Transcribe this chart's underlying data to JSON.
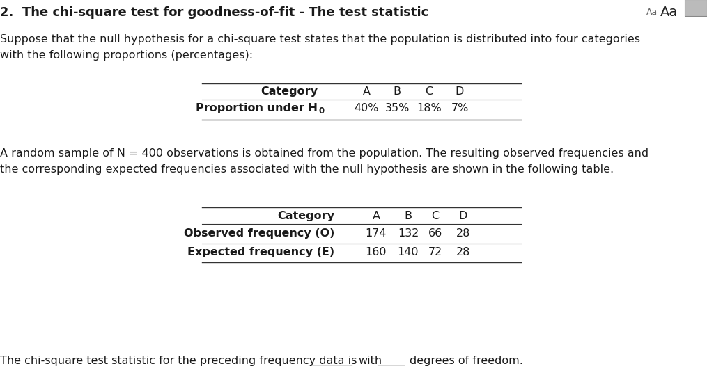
{
  "title": "2.  The chi-square test for goodness-of-fit - The test statistic",
  "bg_color": "#ffffff",
  "text_color": "#1a1a1a",
  "para1_line1": "Suppose that the null hypothesis for a chi-square test states that the population is distributed into four categories",
  "para1_line2": "with the following proportions (percentages):",
  "table1_header": [
    "Category",
    "A",
    "B",
    "C",
    "D"
  ],
  "table1_row1_label": "Proportion under H",
  "table1_row1_sub": "0",
  "table1_row1_values": [
    "40%",
    "35%",
    "18%",
    "7%"
  ],
  "para2_line1": "A random sample of N = 400 observations is obtained from the population. The resulting observed frequencies and",
  "para2_line2": "the corresponding expected frequencies associated with the null hypothesis are shown in the following table.",
  "table2_header": [
    "Category",
    "A",
    "B",
    "C",
    "D"
  ],
  "table2_row1_label": "Observed frequency (O)",
  "table2_row1_values": [
    "174",
    "132",
    "66",
    "28"
  ],
  "table2_row2_label": "Expected frequency (E)",
  "table2_row2_values": [
    "160",
    "140",
    "72",
    "28"
  ],
  "footer_part1": "The chi-square test statistic for the preceding frequency data is",
  "footer_part2": "with",
  "footer_part3": "degrees of freedom.",
  "font_size_title": 13,
  "font_size_body": 11.5,
  "font_size_table": 11.5,
  "font_size_small_aa": 9,
  "font_size_large_aa": 14
}
